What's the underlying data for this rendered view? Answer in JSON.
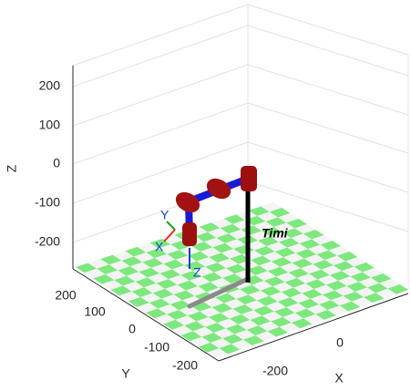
{
  "axes": {
    "x_label": "X",
    "y_label": "Y",
    "z_label": "Z",
    "x_ticks": [
      -200,
      0
    ],
    "y_ticks": [
      200,
      100,
      0,
      -100,
      -200
    ],
    "z_ticks": [
      200,
      100,
      0,
      -100,
      -200
    ]
  },
  "robot": {
    "name": "Timi"
  },
  "frame": {
    "x": "X",
    "y": "Y",
    "z": "Z"
  }
}
